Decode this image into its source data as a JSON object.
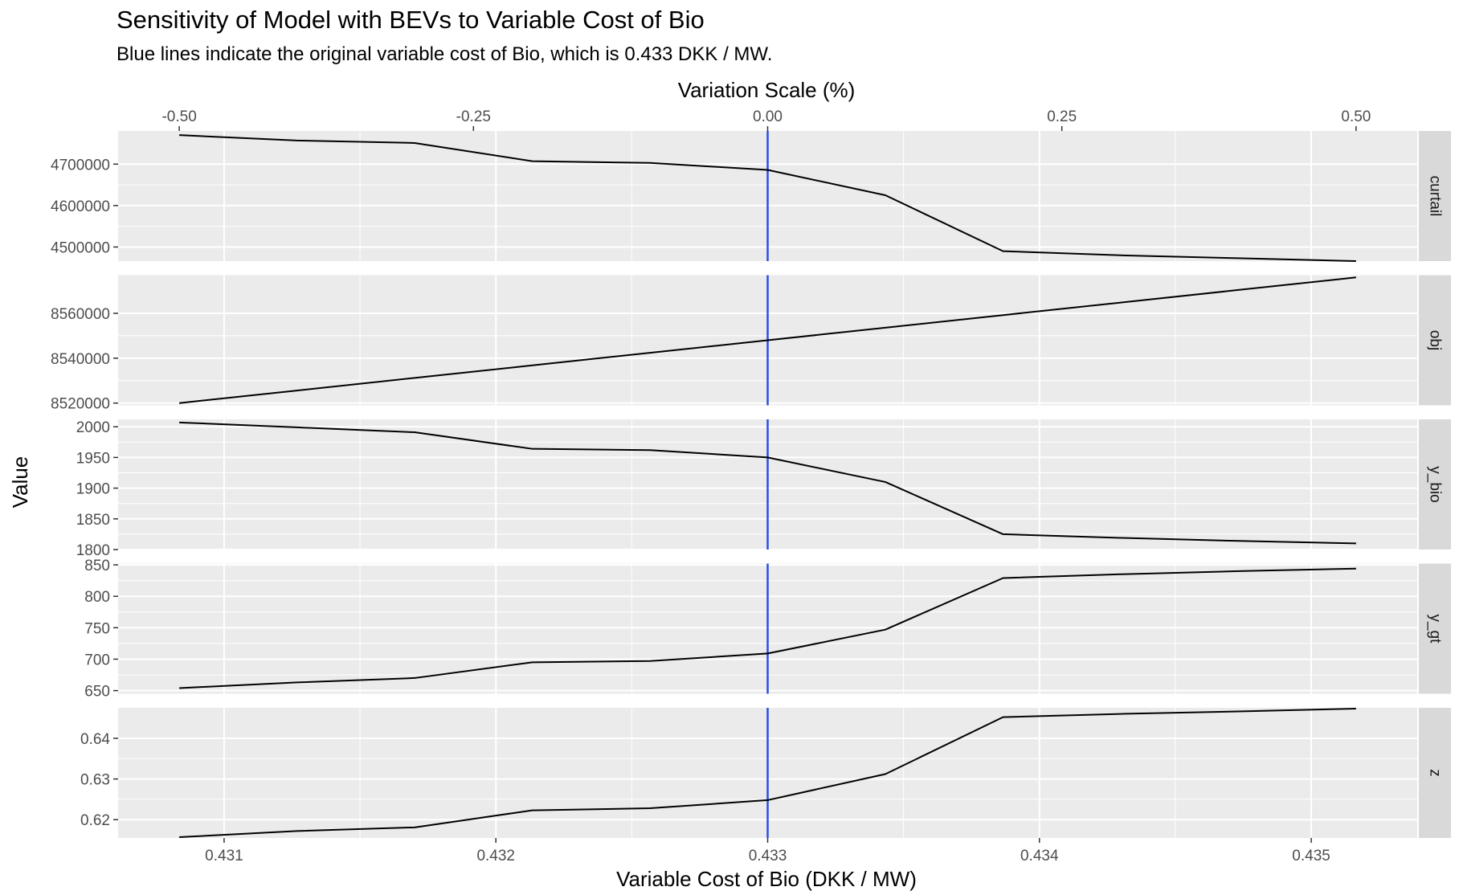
{
  "chart_data": {
    "type": "line",
    "title": "Sensitivity of Model with BEVs to Variable Cost of Bio",
    "subtitle": "Blue lines indicate the original variable cost of Bio, which is 0.433 DKK / MW.",
    "xlabel": "Variable Cost of Bio (DKK / MW)",
    "x2label": "Variation Scale (%)",
    "ylabel": "Value",
    "x": [
      0.430835,
      0.431268,
      0.431701,
      0.432134,
      0.432567,
      0.433,
      0.433433,
      0.433866,
      0.434299,
      0.434732,
      0.435165
    ],
    "xlim": [
      0.43061,
      0.43539
    ],
    "x_ticks": [
      0.431,
      0.432,
      0.433,
      0.434,
      0.435
    ],
    "x_tick_labels": [
      "0.431",
      "0.432",
      "0.433",
      "0.434",
      "0.435"
    ],
    "x2_ticks": [
      -0.5,
      -0.25,
      0.0,
      0.25,
      0.5
    ],
    "x2_tick_labels": [
      "-0.50",
      "-0.25",
      "0.00",
      "0.25",
      "0.50"
    ],
    "reference_x": 0.433,
    "reference_color": "#2b4ee6",
    "line_color": "#000000",
    "panel_bg": "#ebebeb",
    "strip_bg": "#d9d9d9",
    "grid": true,
    "panels": [
      {
        "label": "curtail",
        "ylim": [
          4466000,
          4780000
        ],
        "y_ticks": [
          4500000,
          4600000,
          4700000
        ],
        "y_tick_labels": [
          "4500000",
          "4600000",
          "4700000"
        ],
        "values": [
          4770000,
          4757000,
          4751000,
          4707000,
          4703000,
          4686000,
          4625000,
          4490000,
          4480000,
          4473000,
          4466000
        ]
      },
      {
        "label": "obj",
        "ylim": [
          8519000,
          8577000
        ],
        "y_ticks": [
          8520000,
          8540000,
          8560000
        ],
        "y_tick_labels": [
          "8520000",
          "8540000",
          "8560000"
        ],
        "values": [
          8520000,
          8525600,
          8531200,
          8536800,
          8542400,
          8548000,
          8553600,
          8559200,
          8564800,
          8570400,
          8576000
        ]
      },
      {
        "label": "y_bio",
        "ylim": [
          1800,
          2012
        ],
        "y_ticks": [
          1800,
          1850,
          1900,
          1950,
          2000
        ],
        "y_tick_labels": [
          "1800",
          "1850",
          "1900",
          "1950",
          "2000"
        ],
        "values": [
          2007,
          1999,
          1991,
          1964,
          1962,
          1950,
          1910,
          1825,
          1819,
          1814,
          1810
        ]
      },
      {
        "label": "y_gt",
        "ylim": [
          645,
          852
        ],
        "y_ticks": [
          650,
          700,
          750,
          800,
          850
        ],
        "y_tick_labels": [
          "650",
          "700",
          "750",
          "800",
          "850"
        ],
        "values": [
          654,
          663,
          670,
          695,
          697,
          709,
          747,
          829,
          835,
          840,
          844
        ]
      },
      {
        "label": "z",
        "ylim": [
          0.6155,
          0.6475
        ],
        "y_ticks": [
          0.62,
          0.63,
          0.64
        ],
        "y_tick_labels": [
          "0.62",
          "0.63",
          "0.64"
        ],
        "values": [
          0.6157,
          0.6172,
          0.6181,
          0.6223,
          0.6228,
          0.6248,
          0.6312,
          0.6452,
          0.646,
          0.6466,
          0.6473
        ]
      }
    ]
  }
}
